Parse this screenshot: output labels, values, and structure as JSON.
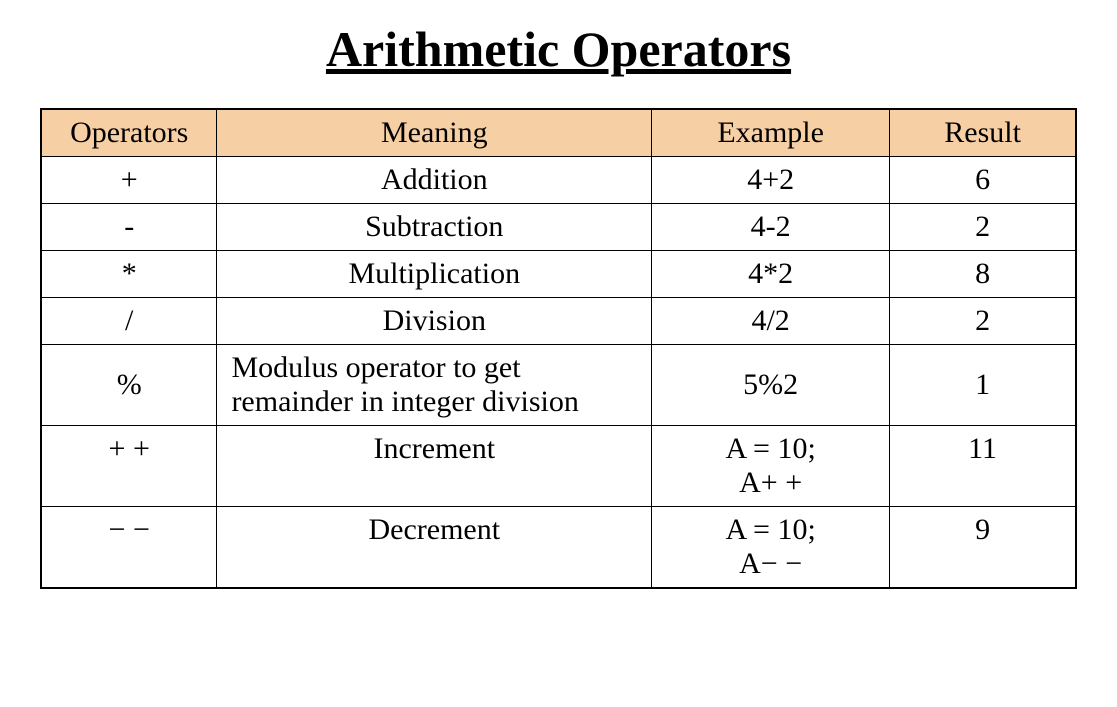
{
  "title": "Arithmetic Operators",
  "table": {
    "columns": [
      "Operators",
      "Meaning",
      "Example",
      "Result"
    ],
    "col_widths_pct": [
      17,
      42,
      23,
      18
    ],
    "header_bg_color": "#f7cfa5",
    "border_color": "#000000",
    "font_family": "Times New Roman",
    "header_fontsize": 30,
    "cell_fontsize": 30,
    "rows": [
      {
        "operator": "+",
        "meaning": "Addition",
        "meaning_align": "center",
        "example": "4+2",
        "example_align": "center",
        "result": "6",
        "result_align": "center"
      },
      {
        "operator": "-",
        "meaning": "Subtraction",
        "meaning_align": "center",
        "example": "4-2",
        "example_align": "center",
        "result": "2",
        "result_align": "center"
      },
      {
        "operator": "*",
        "meaning": "Multiplication",
        "meaning_align": "center",
        "example": "4*2",
        "example_align": "center",
        "result": "8",
        "result_align": "center"
      },
      {
        "operator": "/",
        "meaning": "Division",
        "meaning_align": "center",
        "example": "4/2",
        "example_align": "center",
        "result": "2",
        "result_align": "center"
      },
      {
        "operator": "%",
        "meaning": "Modulus operator to get remainder in integer division",
        "meaning_align": "left",
        "example": "5%2",
        "example_align": "center",
        "result": "1",
        "result_align": "center",
        "operator_valign": "middle"
      },
      {
        "operator": "+ +",
        "meaning": "Increment",
        "meaning_align": "center",
        "example": "A = 10;\nA+ +",
        "example_align": "center",
        "result": "11",
        "result_align": "center",
        "operator_valign": "top",
        "result_valign": "top"
      },
      {
        "operator": "− −",
        "meaning": "Decrement",
        "meaning_align": "center",
        "example": "A = 10;\nA− −",
        "example_align": "center",
        "result": "9",
        "result_align": "center",
        "operator_valign": "top",
        "result_valign": "top"
      }
    ]
  },
  "title_fontsize": 50,
  "title_font_weight": "bold",
  "title_underline": true,
  "background_color": "#ffffff",
  "text_color": "#000000"
}
